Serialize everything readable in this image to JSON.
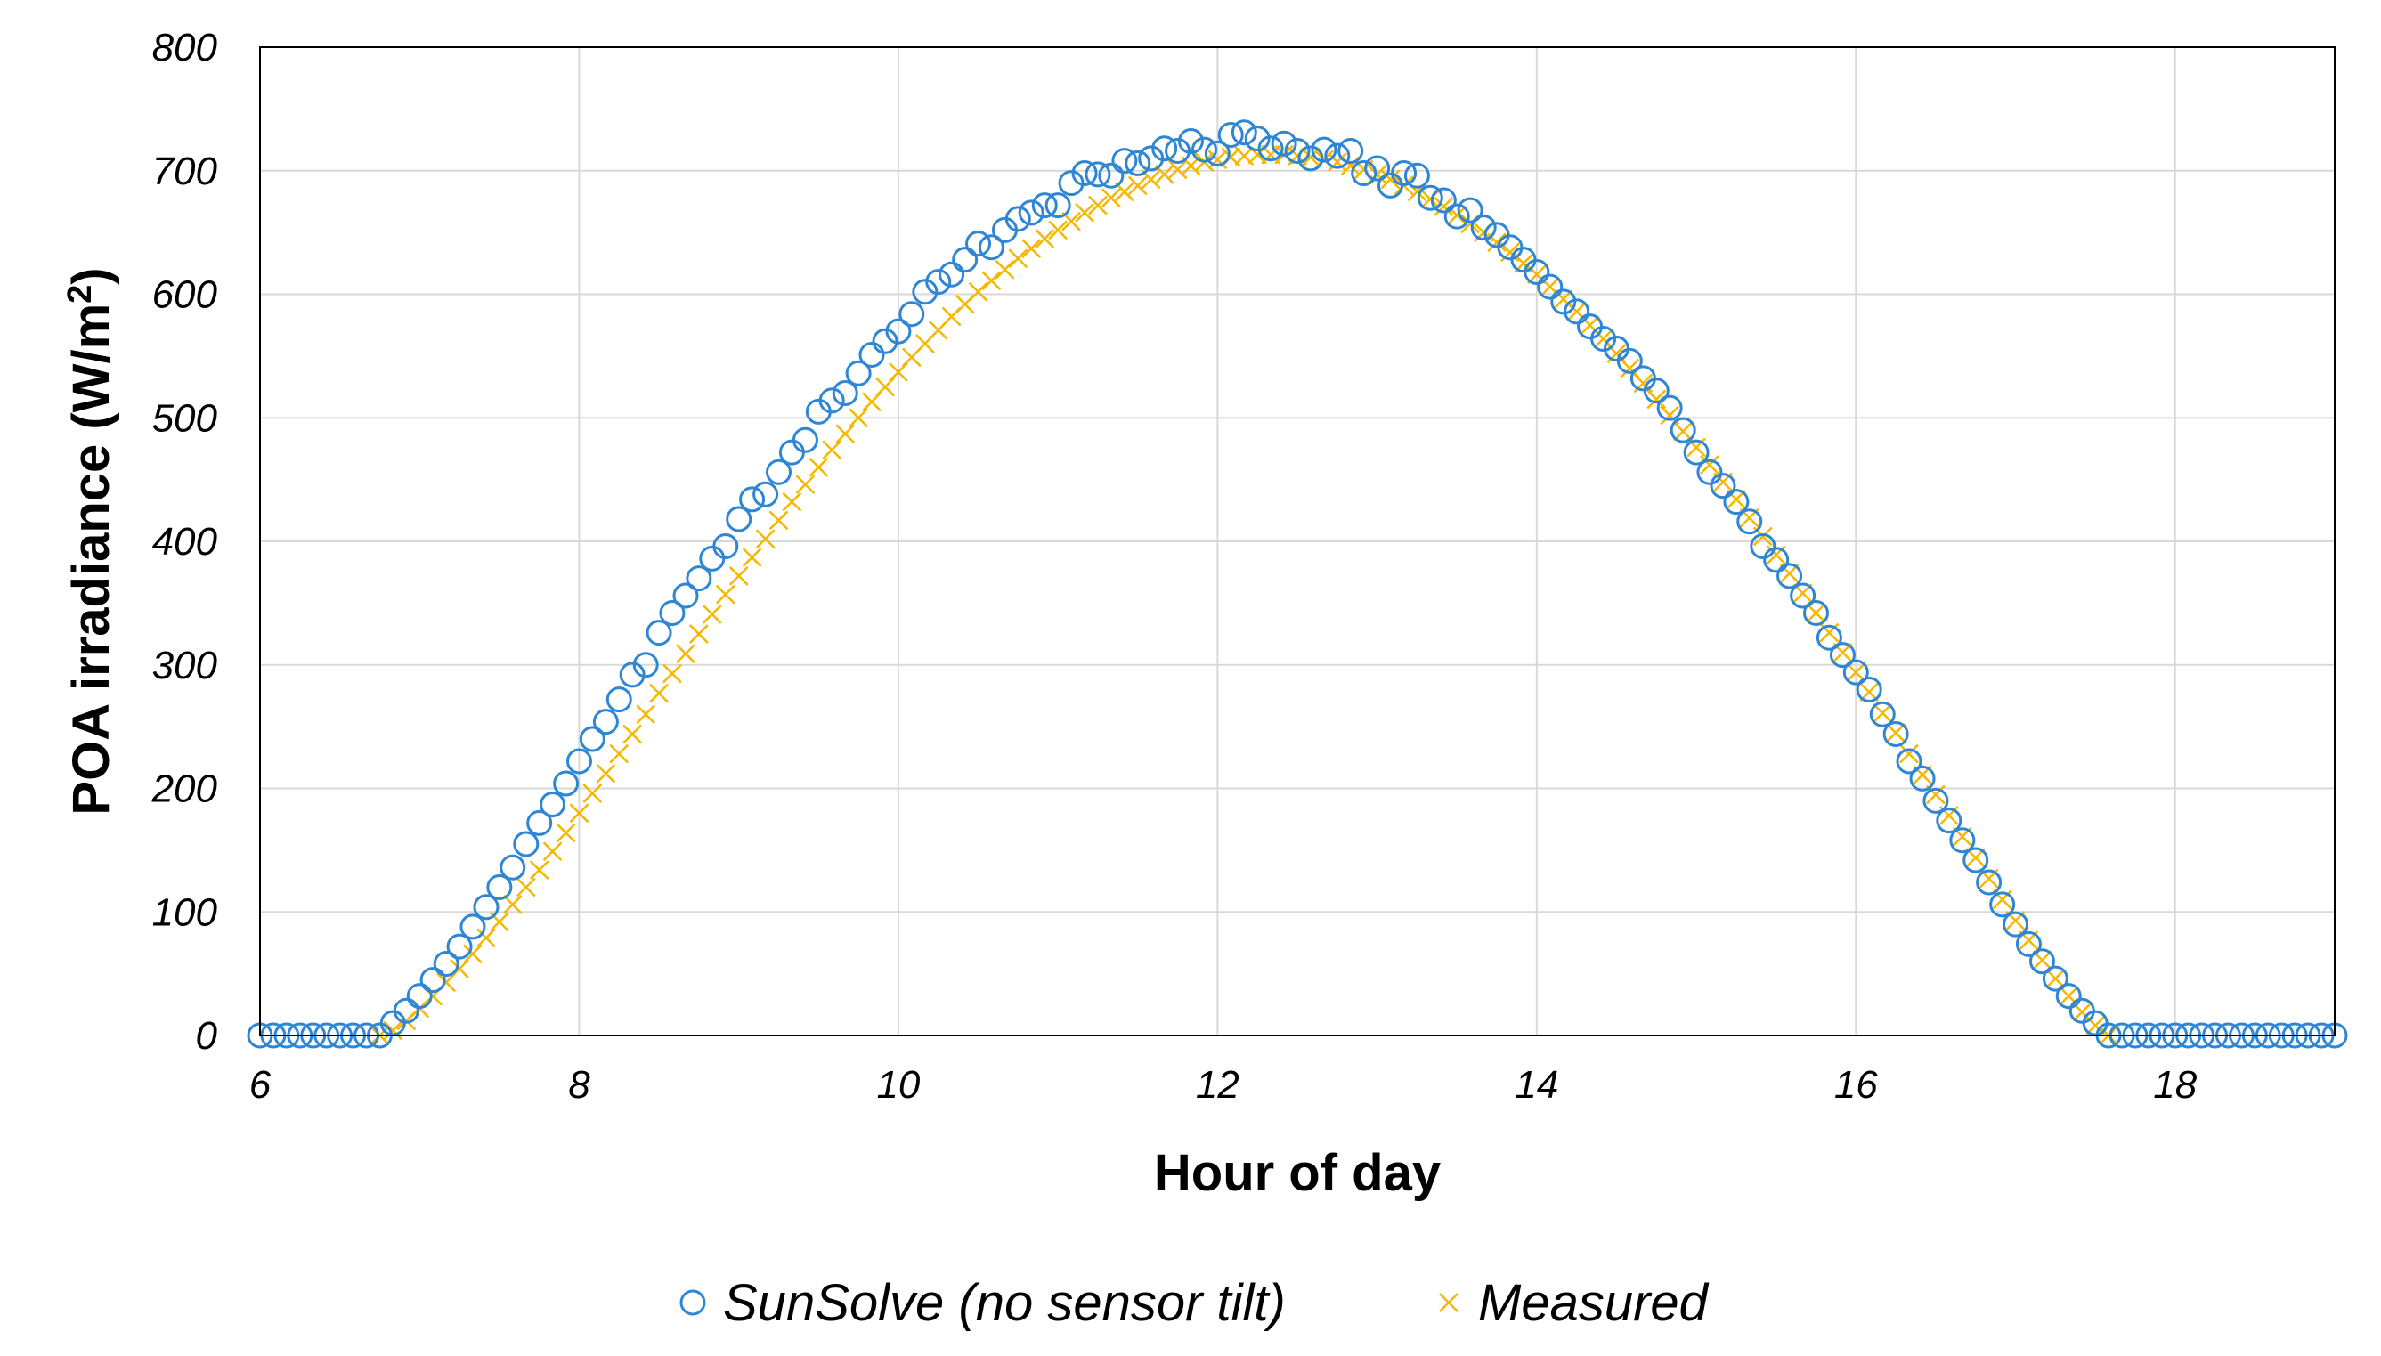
{
  "chart_data": {
    "type": "scatter",
    "title": "",
    "xlabel": "Hour of day",
    "ylabel_prefix": "POA irradiance (W/m",
    "ylabel_sup": "2",
    "ylabel_suffix": ")",
    "xlim": [
      6,
      19
    ],
    "ylim": [
      0,
      800
    ],
    "xticks": [
      6,
      8,
      10,
      12,
      14,
      16,
      18
    ],
    "yticks": [
      0,
      100,
      200,
      300,
      400,
      500,
      600,
      700,
      800
    ],
    "grid": true,
    "legend_position": "bottom",
    "series": [
      {
        "name": "SunSolve (no sensor tilt)",
        "marker": "circle",
        "color": "#2E86D4",
        "points": [
          [
            6.0,
            0
          ],
          [
            6.083,
            0
          ],
          [
            6.167,
            0
          ],
          [
            6.25,
            0
          ],
          [
            6.333,
            0
          ],
          [
            6.417,
            0
          ],
          [
            6.5,
            0
          ],
          [
            6.583,
            0
          ],
          [
            6.667,
            0
          ],
          [
            6.75,
            0
          ],
          [
            6.833,
            10
          ],
          [
            6.917,
            20
          ],
          [
            7.0,
            32
          ],
          [
            7.083,
            45
          ],
          [
            7.167,
            58
          ],
          [
            7.25,
            72
          ],
          [
            7.333,
            88
          ],
          [
            7.417,
            104
          ],
          [
            7.5,
            120
          ],
          [
            7.583,
            136
          ],
          [
            7.667,
            155
          ],
          [
            7.75,
            172
          ],
          [
            7.833,
            187
          ],
          [
            7.917,
            204
          ],
          [
            8.0,
            222
          ],
          [
            8.083,
            240
          ],
          [
            8.167,
            254
          ],
          [
            8.25,
            272
          ],
          [
            8.333,
            292
          ],
          [
            8.417,
            300
          ],
          [
            8.5,
            326
          ],
          [
            8.583,
            342
          ],
          [
            8.667,
            356
          ],
          [
            8.75,
            370
          ],
          [
            8.833,
            386
          ],
          [
            8.917,
            396
          ],
          [
            9.0,
            418
          ],
          [
            9.083,
            434
          ],
          [
            9.167,
            438
          ],
          [
            9.25,
            456
          ],
          [
            9.333,
            472
          ],
          [
            9.417,
            482
          ],
          [
            9.5,
            505
          ],
          [
            9.583,
            514
          ],
          [
            9.667,
            520
          ],
          [
            9.75,
            536
          ],
          [
            9.833,
            551
          ],
          [
            9.917,
            562
          ],
          [
            10.0,
            570
          ],
          [
            10.083,
            584
          ],
          [
            10.167,
            602
          ],
          [
            10.25,
            610
          ],
          [
            10.333,
            616
          ],
          [
            10.417,
            628
          ],
          [
            10.5,
            641
          ],
          [
            10.583,
            638
          ],
          [
            10.667,
            652
          ],
          [
            10.75,
            661
          ],
          [
            10.833,
            666
          ],
          [
            10.917,
            672
          ],
          [
            11.0,
            672
          ],
          [
            11.083,
            690
          ],
          [
            11.167,
            698
          ],
          [
            11.25,
            697
          ],
          [
            11.333,
            696
          ],
          [
            11.417,
            708
          ],
          [
            11.5,
            706
          ],
          [
            11.583,
            710
          ],
          [
            11.667,
            718
          ],
          [
            11.75,
            716
          ],
          [
            11.833,
            724
          ],
          [
            11.917,
            717
          ],
          [
            12.0,
            714
          ],
          [
            12.083,
            729
          ],
          [
            12.167,
            731
          ],
          [
            12.25,
            726
          ],
          [
            12.333,
            718
          ],
          [
            12.417,
            722
          ],
          [
            12.5,
            716
          ],
          [
            12.583,
            710
          ],
          [
            12.667,
            717
          ],
          [
            12.75,
            712
          ],
          [
            12.833,
            716
          ],
          [
            12.917,
            698
          ],
          [
            13.0,
            702
          ],
          [
            13.083,
            688
          ],
          [
            13.167,
            698
          ],
          [
            13.25,
            696
          ],
          [
            13.333,
            678
          ],
          [
            13.417,
            676
          ],
          [
            13.5,
            663
          ],
          [
            13.583,
            668
          ],
          [
            13.667,
            654
          ],
          [
            13.75,
            648
          ],
          [
            13.833,
            638
          ],
          [
            13.917,
            628
          ],
          [
            14.0,
            618
          ],
          [
            14.083,
            606
          ],
          [
            14.167,
            594
          ],
          [
            14.25,
            586
          ],
          [
            14.333,
            574
          ],
          [
            14.417,
            564
          ],
          [
            14.5,
            556
          ],
          [
            14.583,
            546
          ],
          [
            14.667,
            532
          ],
          [
            14.75,
            522
          ],
          [
            14.833,
            508
          ],
          [
            14.917,
            490
          ],
          [
            15.0,
            472
          ],
          [
            15.083,
            456
          ],
          [
            15.167,
            445
          ],
          [
            15.25,
            432
          ],
          [
            15.333,
            416
          ],
          [
            15.417,
            396
          ],
          [
            15.5,
            385
          ],
          [
            15.583,
            372
          ],
          [
            15.667,
            356
          ],
          [
            15.75,
            342
          ],
          [
            15.833,
            322
          ],
          [
            15.917,
            308
          ],
          [
            16.0,
            294
          ],
          [
            16.083,
            280
          ],
          [
            16.167,
            260
          ],
          [
            16.25,
            244
          ],
          [
            16.333,
            222
          ],
          [
            16.417,
            208
          ],
          [
            16.5,
            190
          ],
          [
            16.583,
            174
          ],
          [
            16.667,
            158
          ],
          [
            16.75,
            142
          ],
          [
            16.833,
            124
          ],
          [
            16.917,
            106
          ],
          [
            17.0,
            90
          ],
          [
            17.083,
            74
          ],
          [
            17.167,
            60
          ],
          [
            17.25,
            46
          ],
          [
            17.333,
            32
          ],
          [
            17.417,
            20
          ],
          [
            17.5,
            10
          ],
          [
            17.583,
            0
          ],
          [
            17.667,
            0
          ],
          [
            17.75,
            0
          ],
          [
            17.833,
            0
          ],
          [
            17.917,
            0
          ],
          [
            18.0,
            0
          ],
          [
            18.083,
            0
          ],
          [
            18.167,
            0
          ],
          [
            18.25,
            0
          ],
          [
            18.333,
            0
          ],
          [
            18.417,
            0
          ],
          [
            18.5,
            0
          ],
          [
            18.583,
            0
          ],
          [
            18.667,
            0
          ],
          [
            18.75,
            0
          ],
          [
            18.833,
            0
          ],
          [
            18.917,
            0
          ],
          [
            19.0,
            0
          ]
        ]
      },
      {
        "name": "Measured",
        "marker": "x",
        "color": "#F5B800",
        "points": [
          [
            6.75,
            0
          ],
          [
            6.833,
            4
          ],
          [
            6.917,
            12
          ],
          [
            7.0,
            22
          ],
          [
            7.083,
            32
          ],
          [
            7.167,
            43
          ],
          [
            7.25,
            54
          ],
          [
            7.333,
            66
          ],
          [
            7.417,
            79
          ],
          [
            7.5,
            92
          ],
          [
            7.583,
            106
          ],
          [
            7.667,
            120
          ],
          [
            7.75,
            134
          ],
          [
            7.833,
            149
          ],
          [
            7.917,
            164
          ],
          [
            8.0,
            180
          ],
          [
            8.083,
            196
          ],
          [
            8.167,
            212
          ],
          [
            8.25,
            228
          ],
          [
            8.333,
            244
          ],
          [
            8.417,
            260
          ],
          [
            8.5,
            277
          ],
          [
            8.583,
            293
          ],
          [
            8.667,
            309
          ],
          [
            8.75,
            325
          ],
          [
            8.833,
            341
          ],
          [
            8.917,
            357
          ],
          [
            9.0,
            372
          ],
          [
            9.083,
            387
          ],
          [
            9.167,
            402
          ],
          [
            9.25,
            417
          ],
          [
            9.333,
            432
          ],
          [
            9.417,
            446
          ],
          [
            9.5,
            460
          ],
          [
            9.583,
            474
          ],
          [
            9.667,
            487
          ],
          [
            9.75,
            500
          ],
          [
            9.833,
            513
          ],
          [
            9.917,
            525
          ],
          [
            10.0,
            537
          ],
          [
            10.083,
            549
          ],
          [
            10.167,
            560
          ],
          [
            10.25,
            571
          ],
          [
            10.333,
            582
          ],
          [
            10.417,
            592
          ],
          [
            10.5,
            602
          ],
          [
            10.583,
            611
          ],
          [
            10.667,
            620
          ],
          [
            10.75,
            629
          ],
          [
            10.833,
            637
          ],
          [
            10.917,
            645
          ],
          [
            11.0,
            652
          ],
          [
            11.083,
            659
          ],
          [
            11.167,
            666
          ],
          [
            11.25,
            672
          ],
          [
            11.333,
            678
          ],
          [
            11.417,
            683
          ],
          [
            11.5,
            688
          ],
          [
            11.583,
            693
          ],
          [
            11.667,
            697
          ],
          [
            11.75,
            701
          ],
          [
            11.833,
            704
          ],
          [
            11.917,
            707
          ],
          [
            12.0,
            709
          ],
          [
            12.083,
            711
          ],
          [
            12.167,
            712
          ],
          [
            12.25,
            713
          ],
          [
            12.333,
            713
          ],
          [
            12.417,
            713
          ],
          [
            12.5,
            712
          ],
          [
            12.583,
            711
          ],
          [
            12.667,
            709
          ],
          [
            12.75,
            707
          ],
          [
            12.833,
            704
          ],
          [
            12.917,
            701
          ],
          [
            13.0,
            697
          ],
          [
            13.083,
            693
          ],
          [
            13.167,
            688
          ],
          [
            13.25,
            683
          ],
          [
            13.333,
            677
          ],
          [
            13.417,
            671
          ],
          [
            13.5,
            664
          ],
          [
            13.583,
            657
          ],
          [
            13.667,
            650
          ],
          [
            13.75,
            642
          ],
          [
            13.833,
            634
          ],
          [
            13.917,
            625
          ],
          [
            14.0,
            616
          ],
          [
            14.083,
            606
          ],
          [
            14.167,
            596
          ],
          [
            14.25,
            586
          ],
          [
            14.333,
            575
          ],
          [
            14.417,
            564
          ],
          [
            14.5,
            552
          ],
          [
            14.583,
            540
          ],
          [
            14.667,
            528
          ],
          [
            14.75,
            515
          ],
          [
            14.833,
            502
          ],
          [
            14.917,
            489
          ],
          [
            15.0,
            476
          ],
          [
            15.083,
            462
          ],
          [
            15.167,
            448
          ],
          [
            15.25,
            434
          ],
          [
            15.333,
            419
          ],
          [
            15.417,
            404
          ],
          [
            15.5,
            389
          ],
          [
            15.583,
            374
          ],
          [
            15.667,
            358
          ],
          [
            15.75,
            342
          ],
          [
            15.833,
            326
          ],
          [
            15.917,
            310
          ],
          [
            16.0,
            294
          ],
          [
            16.083,
            278
          ],
          [
            16.167,
            261
          ],
          [
            16.25,
            245
          ],
          [
            16.333,
            228
          ],
          [
            16.417,
            211
          ],
          [
            16.5,
            195
          ],
          [
            16.583,
            178
          ],
          [
            16.667,
            161
          ],
          [
            16.75,
            144
          ],
          [
            16.833,
            127
          ],
          [
            16.917,
            110
          ],
          [
            17.0,
            93
          ],
          [
            17.083,
            77
          ],
          [
            17.167,
            61
          ],
          [
            17.25,
            46
          ],
          [
            17.333,
            32
          ],
          [
            17.417,
            19
          ],
          [
            17.5,
            8
          ],
          [
            17.583,
            0
          ]
        ]
      }
    ]
  }
}
